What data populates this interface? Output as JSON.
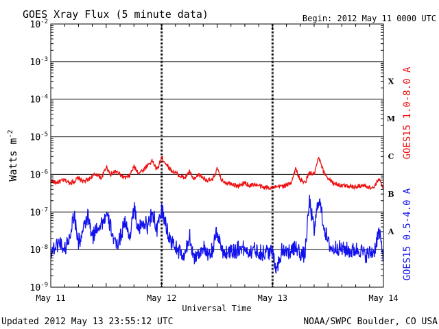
{
  "chart_data": {
    "type": "line",
    "title": "GOES Xray Flux (5 minute data)",
    "begin_label": "Begin:  2012 May 11 0000 UTC",
    "ylabel": "Watts m",
    "ylabel_sup": "-2",
    "xlabel": "Universal Time",
    "y_scale": "log",
    "ylim": [
      1e-09,
      0.01
    ],
    "y_ticks": [
      {
        "value": 1e-09,
        "base": "10",
        "exp": "-9"
      },
      {
        "value": 1e-08,
        "base": "10",
        "exp": "-8"
      },
      {
        "value": 1e-07,
        "base": "10",
        "exp": "-7"
      },
      {
        "value": 1e-06,
        "base": "10",
        "exp": "-6"
      },
      {
        "value": 1e-05,
        "base": "10",
        "exp": "-5"
      },
      {
        "value": 0.0001,
        "base": "10",
        "exp": "-4"
      },
      {
        "value": 0.001,
        "base": "10",
        "exp": "-3"
      },
      {
        "value": 0.01,
        "base": "10",
        "exp": "-2"
      }
    ],
    "xlim": [
      "2012-05-11",
      "2012-05-14"
    ],
    "x_ticks": [
      "May 11",
      "May 12",
      "May 13",
      "May 14"
    ],
    "grid": true,
    "flare_classes": [
      {
        "label": "X",
        "value": 0.0001
      },
      {
        "label": "M",
        "value": 1e-05
      },
      {
        "label": "C",
        "value": 1e-06
      },
      {
        "label": "B",
        "value": 1e-07
      },
      {
        "label": "A",
        "value": 1e-08
      }
    ],
    "series": [
      {
        "name": "GOES15 1.0-8.0 A",
        "color": "#ee1111",
        "x_hours": [
          0,
          1,
          2,
          3,
          4,
          5,
          6,
          7,
          8,
          9,
          10,
          11,
          12,
          13,
          14,
          15,
          16,
          17,
          18,
          19,
          20,
          21,
          22,
          23,
          24,
          25,
          26,
          27,
          28,
          29,
          30,
          31,
          32,
          33,
          34,
          35,
          36,
          37,
          38,
          39,
          40,
          41,
          42,
          43,
          44,
          45,
          46,
          47,
          48,
          49,
          50,
          51,
          52,
          53,
          54,
          55,
          56,
          57,
          58,
          59,
          60,
          61,
          62,
          63,
          64,
          65,
          66,
          67,
          68,
          69,
          70,
          71,
          72
        ],
        "values": [
          7e-07,
          6e-07,
          6.5e-07,
          7e-07,
          6e-07,
          6.5e-07,
          8e-07,
          6.5e-07,
          7e-07,
          9e-07,
          1e-06,
          8e-07,
          1.6e-06,
          1e-06,
          1.2e-06,
          1e-06,
          8e-07,
          9e-07,
          1.6e-06,
          1.1e-06,
          1.3e-06,
          1.8e-06,
          2.3e-06,
          1.3e-06,
          2.8e-06,
          1.9e-06,
          1.3e-06,
          1.1e-06,
          9e-07,
          8e-07,
          1.2e-06,
          7e-07,
          1e-06,
          8e-07,
          7e-07,
          7e-07,
          1.4e-06,
          7e-07,
          6e-07,
          6e-07,
          5e-07,
          5e-07,
          6e-07,
          5e-07,
          5.5e-07,
          5e-07,
          4.5e-07,
          4.5e-07,
          4.5e-07,
          4.5e-07,
          5e-07,
          5e-07,
          6e-07,
          1.4e-06,
          7e-07,
          6e-07,
          1.1e-06,
          1e-06,
          2.8e-06,
          1.2e-06,
          8e-07,
          6e-07,
          5.5e-07,
          5e-07,
          5e-07,
          5e-07,
          4.5e-07,
          5e-07,
          5e-07,
          4.5e-07,
          4.5e-07,
          7.5e-07,
          4.5e-07
        ]
      },
      {
        "name": "GOES15 0.5-4.0 A",
        "color": "#1111ee",
        "x_hours": [
          0,
          1,
          2,
          3,
          4,
          5,
          6,
          7,
          8,
          9,
          10,
          11,
          12,
          13,
          14,
          15,
          16,
          17,
          18,
          19,
          20,
          21,
          22,
          23,
          24,
          25,
          26,
          27,
          28,
          29,
          30,
          31,
          32,
          33,
          34,
          35,
          36,
          37,
          38,
          39,
          40,
          41,
          42,
          43,
          44,
          45,
          46,
          47,
          48,
          49,
          50,
          51,
          52,
          53,
          54,
          55,
          56,
          57,
          58,
          59,
          60,
          61,
          62,
          63,
          64,
          65,
          66,
          67,
          68,
          69,
          70,
          71,
          72
        ],
        "values": [
          9e-09,
          1.2e-08,
          1.6e-08,
          1e-08,
          2e-08,
          9e-08,
          1.5e-08,
          3e-08,
          8e-08,
          2e-08,
          4e-08,
          5e-08,
          8e-08,
          4e-08,
          1.2e-08,
          2e-08,
          6e-08,
          2e-08,
          1.3e-07,
          3e-08,
          6e-08,
          4e-08,
          1.1e-07,
          3e-08,
          1.2e-07,
          4e-08,
          1.6e-08,
          1.2e-08,
          8e-09,
          6e-09,
          2.5e-08,
          6e-09,
          8e-09,
          1.2e-08,
          6e-09,
          1e-08,
          3e-08,
          1e-08,
          8e-09,
          1e-08,
          9e-09,
          1.2e-08,
          1e-08,
          9e-09,
          1e-08,
          9e-09,
          8e-09,
          9e-09,
          8e-09,
          3e-09,
          1e-08,
          1e-08,
          8e-09,
          1.2e-08,
          8e-09,
          7e-09,
          2e-07,
          3e-08,
          2.5e-07,
          5e-08,
          1.5e-08,
          1e-08,
          1.2e-08,
          1e-08,
          1e-08,
          9e-09,
          1e-08,
          1e-08,
          7e-09,
          8e-09,
          9e-09,
          3e-08,
          7e-09
        ]
      }
    ]
  },
  "footer": {
    "updated": "Updated 2012 May 13 23:55:12 UTC",
    "source": "NOAA/SWPC Boulder, CO USA"
  }
}
